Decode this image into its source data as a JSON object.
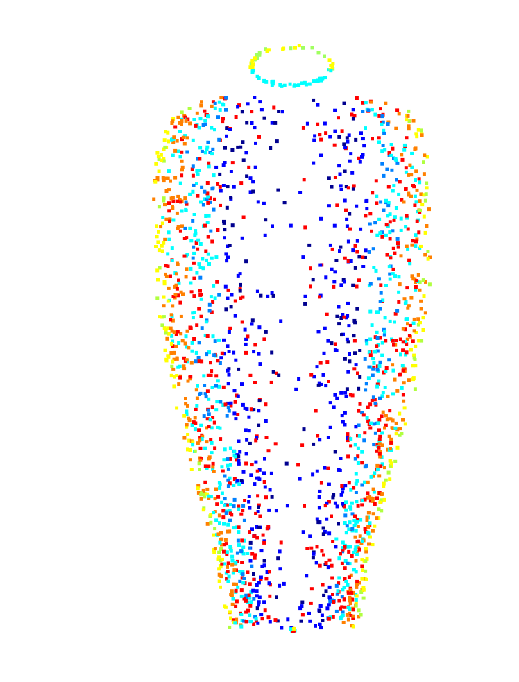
{
  "figure": {
    "kind": "point-cloud-render",
    "subject": "vase",
    "background_color": "#ffffff",
    "colormap": "jet",
    "colormap_stops": [
      "#00008f",
      "#0000ff",
      "#00ffff",
      "#ffff00",
      "#ff8000",
      "#ff0000"
    ],
    "point_count": 2048,
    "random_seed": 7
  }
}
